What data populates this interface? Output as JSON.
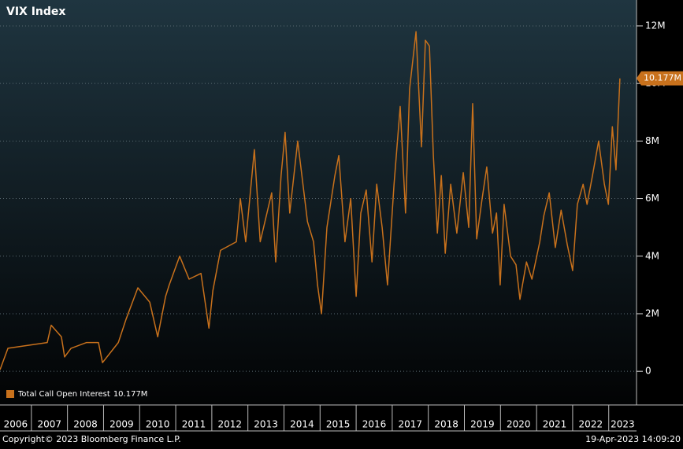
{
  "chart_data": {
    "type": "line",
    "title": "VIX Index",
    "x": [
      2006.13,
      2006.35,
      2007.44,
      2007.55,
      2007.83,
      2007.92,
      2008.1,
      2008.53,
      2008.86,
      2008.97,
      2009.41,
      2009.62,
      2009.95,
      2010.28,
      2010.5,
      2010.72,
      2010.82,
      2011.11,
      2011.37,
      2011.7,
      2011.92,
      2012.03,
      2012.24,
      2012.68,
      2012.79,
      2012.94,
      2013.18,
      2013.34,
      2013.66,
      2013.77,
      2013.92,
      2014.03,
      2014.16,
      2014.38,
      2014.65,
      2014.82,
      2014.93,
      2015.04,
      2015.19,
      2015.41,
      2015.52,
      2015.69,
      2015.85,
      2016.0,
      2016.13,
      2016.28,
      2016.44,
      2016.57,
      2016.72,
      2016.87,
      2017.05,
      2017.22,
      2017.37,
      2017.48,
      2017.66,
      2017.81,
      2017.92,
      2018.03,
      2018.14,
      2018.25,
      2018.36,
      2018.47,
      2018.62,
      2018.79,
      2018.97,
      2019.12,
      2019.23,
      2019.34,
      2019.49,
      2019.62,
      2019.78,
      2019.89,
      2019.99,
      2020.1,
      2020.28,
      2020.43,
      2020.54,
      2020.72,
      2020.87,
      2021.09,
      2021.2,
      2021.35,
      2021.52,
      2021.68,
      2021.85,
      2022.0,
      2022.13,
      2022.29,
      2022.4,
      2022.55,
      2022.72,
      2022.88,
      2022.99,
      2023.1,
      2023.2,
      2023.31
    ],
    "series": [
      {
        "name": "Total Call Open Interest",
        "color": "#c8711c",
        "values": [
          0.05,
          0.8,
          1.0,
          1.6,
          1.2,
          0.5,
          0.8,
          1.0,
          1.0,
          0.3,
          1.0,
          1.8,
          2.9,
          2.4,
          1.2,
          2.6,
          3.0,
          4.0,
          3.2,
          3.4,
          1.5,
          2.8,
          4.2,
          4.5,
          6.0,
          4.5,
          7.7,
          4.5,
          6.2,
          3.8,
          6.8,
          8.3,
          5.5,
          8.0,
          5.2,
          4.5,
          3.0,
          2.0,
          5.0,
          6.8,
          7.5,
          4.5,
          6.0,
          2.6,
          5.5,
          6.3,
          3.8,
          6.5,
          5.0,
          3.0,
          6.5,
          9.2,
          5.5,
          9.8,
          11.8,
          7.8,
          11.5,
          11.3,
          7.5,
          4.8,
          6.8,
          4.1,
          6.5,
          4.8,
          6.9,
          5.0,
          9.3,
          4.6,
          6.0,
          7.1,
          4.8,
          5.5,
          3.0,
          5.8,
          4.0,
          3.7,
          2.5,
          3.8,
          3.2,
          4.5,
          5.4,
          6.2,
          4.3,
          5.6,
          4.4,
          3.5,
          5.8,
          6.5,
          5.8,
          6.8,
          8.0,
          6.5,
          5.8,
          8.5,
          7.0,
          10.177
        ]
      }
    ],
    "last_value_label": "10.177M",
    "xlim": [
      2006.13,
      2023.77
    ],
    "xticks": [
      {
        "value": 2006,
        "label": "2006"
      },
      {
        "value": 2007,
        "label": "2007"
      },
      {
        "value": 2008,
        "label": "2008"
      },
      {
        "value": 2009,
        "label": "2009"
      },
      {
        "value": 2010,
        "label": "2010"
      },
      {
        "value": 2011,
        "label": "2011"
      },
      {
        "value": 2012,
        "label": "2012"
      },
      {
        "value": 2013,
        "label": "2013"
      },
      {
        "value": 2014,
        "label": "2014"
      },
      {
        "value": 2015,
        "label": "2015"
      },
      {
        "value": 2016,
        "label": "2016"
      },
      {
        "value": 2017,
        "label": "2017"
      },
      {
        "value": 2018,
        "label": "2018"
      },
      {
        "value": 2019,
        "label": "2019"
      },
      {
        "value": 2020,
        "label": "2020"
      },
      {
        "value": 2021,
        "label": "2021"
      },
      {
        "value": 2022,
        "label": "2022"
      },
      {
        "value": 2023,
        "label": "2023"
      }
    ],
    "ylim": [
      -1.17,
      12.9
    ],
    "yticks": [
      0,
      {
        "value": 2,
        "label": "2M"
      },
      {
        "value": 4,
        "label": "4M"
      },
      {
        "value": 6,
        "label": "6M"
      },
      {
        "value": 8,
        "label": "8M"
      },
      {
        "value": 10,
        "label": "10M"
      },
      {
        "value": 12,
        "label": "12M"
      }
    ],
    "grid": true,
    "legend": "bottom-left",
    "footer_left": "Copyright© 2023 Bloomberg Finance L.P.",
    "footer_right": "19-Apr-2023 14:09:20"
  }
}
